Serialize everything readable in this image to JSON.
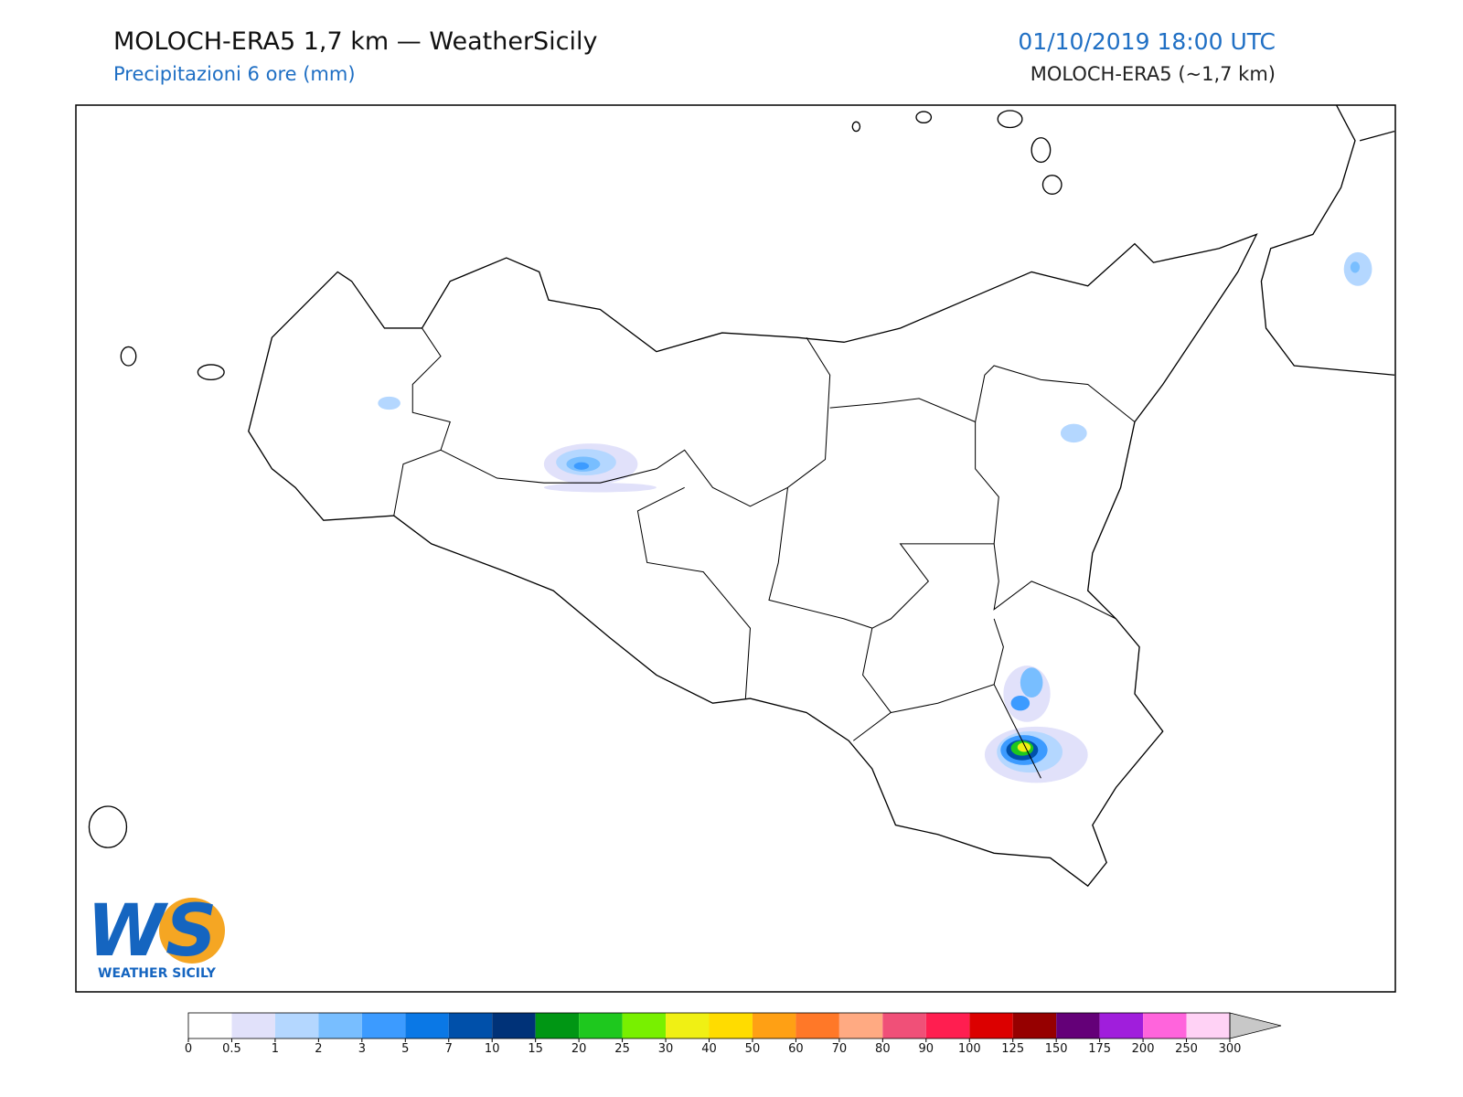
{
  "header": {
    "title": "MOLOCH-ERA5 1,7 km — WeatherSicily",
    "subtitle": "Precipitazioni 6 ore (mm)",
    "date": "01/10/2019 18:00 UTC",
    "model": "MOLOCH-ERA5 (~1,7 km)"
  },
  "logo": {
    "mark": "WS",
    "name": "WEATHER SICILY"
  },
  "colorbar": {
    "bounds": [
      0,
      0.5,
      1,
      2,
      3,
      5,
      7,
      10,
      15,
      20,
      25,
      30,
      40,
      50,
      60,
      70,
      80,
      90,
      100,
      125,
      150,
      175,
      200,
      250,
      300
    ],
    "colors": [
      "#ffffff",
      "#e1e1fa",
      "#b4d7ff",
      "#78beff",
      "#3c9bff",
      "#0a78e6",
      "#0050aa",
      "#003278",
      "#009614",
      "#1ec81e",
      "#78f000",
      "#f0f014",
      "#ffdc00",
      "#ffa014",
      "#ff7828",
      "#ffaa82",
      "#f05078",
      "#ff1e50",
      "#dc0000",
      "#960000",
      "#640078",
      "#a01edc",
      "#ff64dc",
      "#ffd2f5"
    ],
    "extend_color": "#c8c8c8"
  }
}
